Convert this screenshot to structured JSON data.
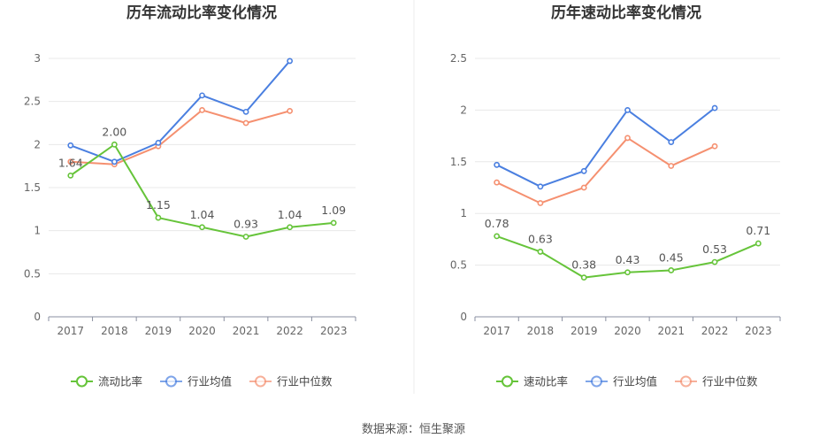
{
  "colors": {
    "own": "#66c43a",
    "avg": "#4a7fe0",
    "median": "#f59070",
    "axis": "#8a8fa0",
    "grid": "#e8e8e8",
    "label": "#666666",
    "title": "#333333",
    "divider": "#eeeeee"
  },
  "source": "数据来源：恒生聚源",
  "chart_data": [
    {
      "type": "line",
      "title": "历年流动比率变化情况",
      "x": [
        "2017",
        "2018",
        "2019",
        "2020",
        "2021",
        "2022",
        "2023"
      ],
      "ylim": [
        0,
        3
      ],
      "yticks": [
        0,
        0.5,
        1,
        1.5,
        2,
        2.5,
        3
      ],
      "ytick_labels": [
        "0",
        "0.5",
        "1",
        "1.5",
        "2",
        "2.5",
        "3"
      ],
      "series": [
        {
          "name": "流动比率",
          "color": "#66c43a",
          "values": [
            1.64,
            2.0,
            1.15,
            1.04,
            0.93,
            1.04,
            1.09
          ],
          "labels": [
            "1.64",
            "2.00",
            "1.15",
            "1.04",
            "0.93",
            "1.04",
            "1.09"
          ]
        },
        {
          "name": "行业均值",
          "color": "#4a7fe0",
          "values": [
            1.99,
            1.8,
            2.02,
            2.57,
            2.38,
            2.97,
            null
          ]
        },
        {
          "name": "行业中位数",
          "color": "#f59070",
          "values": [
            1.8,
            1.77,
            1.98,
            2.4,
            2.25,
            2.39,
            null
          ]
        }
      ],
      "grid": true,
      "legend": "bottom"
    },
    {
      "type": "line",
      "title": "历年速动比率变化情况",
      "x": [
        "2017",
        "2018",
        "2019",
        "2020",
        "2021",
        "2022",
        "2023"
      ],
      "ylim": [
        0,
        2.5
      ],
      "yticks": [
        0,
        0.5,
        1,
        1.5,
        2,
        2.5
      ],
      "ytick_labels": [
        "0",
        "0.5",
        "1",
        "1.5",
        "2",
        "2.5"
      ],
      "series": [
        {
          "name": "速动比率",
          "color": "#66c43a",
          "values": [
            0.78,
            0.63,
            0.38,
            0.43,
            0.45,
            0.53,
            0.71
          ],
          "labels": [
            "0.78",
            "0.63",
            "0.38",
            "0.43",
            "0.45",
            "0.53",
            "0.71"
          ]
        },
        {
          "name": "行业均值",
          "color": "#4a7fe0",
          "values": [
            1.47,
            1.26,
            1.41,
            2.0,
            1.69,
            2.02,
            null
          ]
        },
        {
          "name": "行业中位数",
          "color": "#f59070",
          "values": [
            1.3,
            1.1,
            1.25,
            1.73,
            1.46,
            1.65,
            null
          ]
        }
      ],
      "grid": true,
      "legend": "bottom"
    }
  ]
}
